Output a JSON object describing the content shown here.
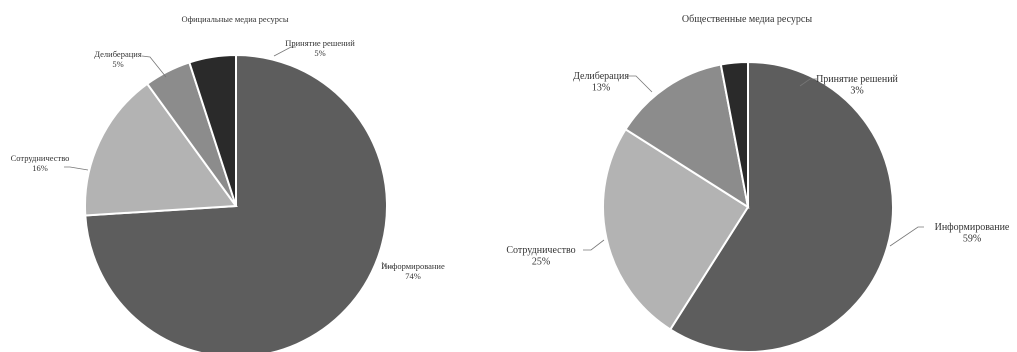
{
  "chart_data": [
    {
      "type": "pie",
      "title": "Официальные медиа ресурсы",
      "slices": [
        {
          "label": "Информирование",
          "value": 74,
          "value_label": "74%",
          "color": "#5d5d5d"
        },
        {
          "label": "Сотрудничество",
          "value": 16,
          "value_label": "16%",
          "color": "#b3b3b3"
        },
        {
          "label": "Делиберация",
          "value": 5,
          "value_label": "5%",
          "color": "#8c8c8c"
        },
        {
          "label": "Принятие решений",
          "value": 5,
          "value_label": "5%",
          "color": "#2a2a2a"
        }
      ]
    },
    {
      "type": "pie",
      "title": "Общественные медиа ресурсы",
      "slices": [
        {
          "label": "Информирование",
          "value": 59,
          "value_label": "59%",
          "color": "#5d5d5d"
        },
        {
          "label": "Сотрудничество",
          "value": 25,
          "value_label": "25%",
          "color": "#b3b3b3"
        },
        {
          "label": "Делиберация",
          "value": 13,
          "value_label": "13%",
          "color": "#8c8c8c"
        },
        {
          "label": "Принятие решений",
          "value": 3,
          "value_label": "3%",
          "color": "#2a2a2a"
        }
      ]
    }
  ]
}
